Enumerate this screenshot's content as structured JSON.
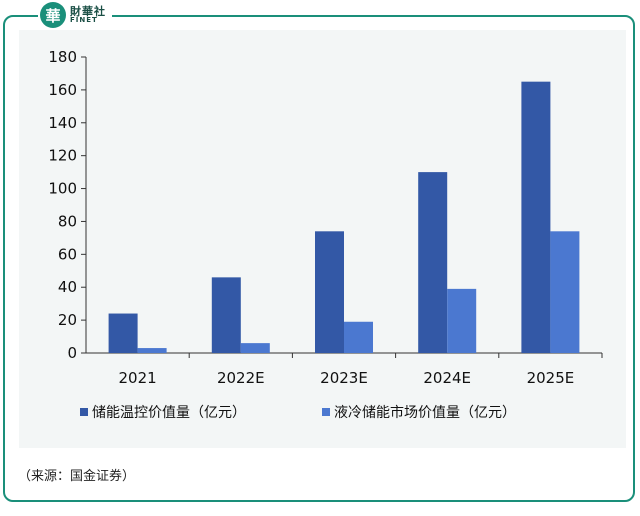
{
  "brand": {
    "mark": "華",
    "cn": "財華社",
    "en": "FINET"
  },
  "source": "（来源：国金证券）",
  "chart_data": {
    "type": "bar",
    "categories": [
      "2021",
      "2022E",
      "2023E",
      "2024E",
      "2025E"
    ],
    "series": [
      {
        "name": "储能温控价值量（亿元）",
        "values": [
          24,
          46,
          74,
          110,
          165
        ],
        "color": "#3358a6"
      },
      {
        "name": "液冷储能市场价值量（亿元）",
        "values": [
          3,
          6,
          19,
          39,
          74
        ],
        "color": "#4b78d0"
      }
    ],
    "yticks": [
      "0",
      "20",
      "40",
      "60",
      "80",
      "100",
      "120",
      "140",
      "160",
      "180"
    ],
    "ylim": [
      0,
      180
    ],
    "legend": "bottom"
  }
}
